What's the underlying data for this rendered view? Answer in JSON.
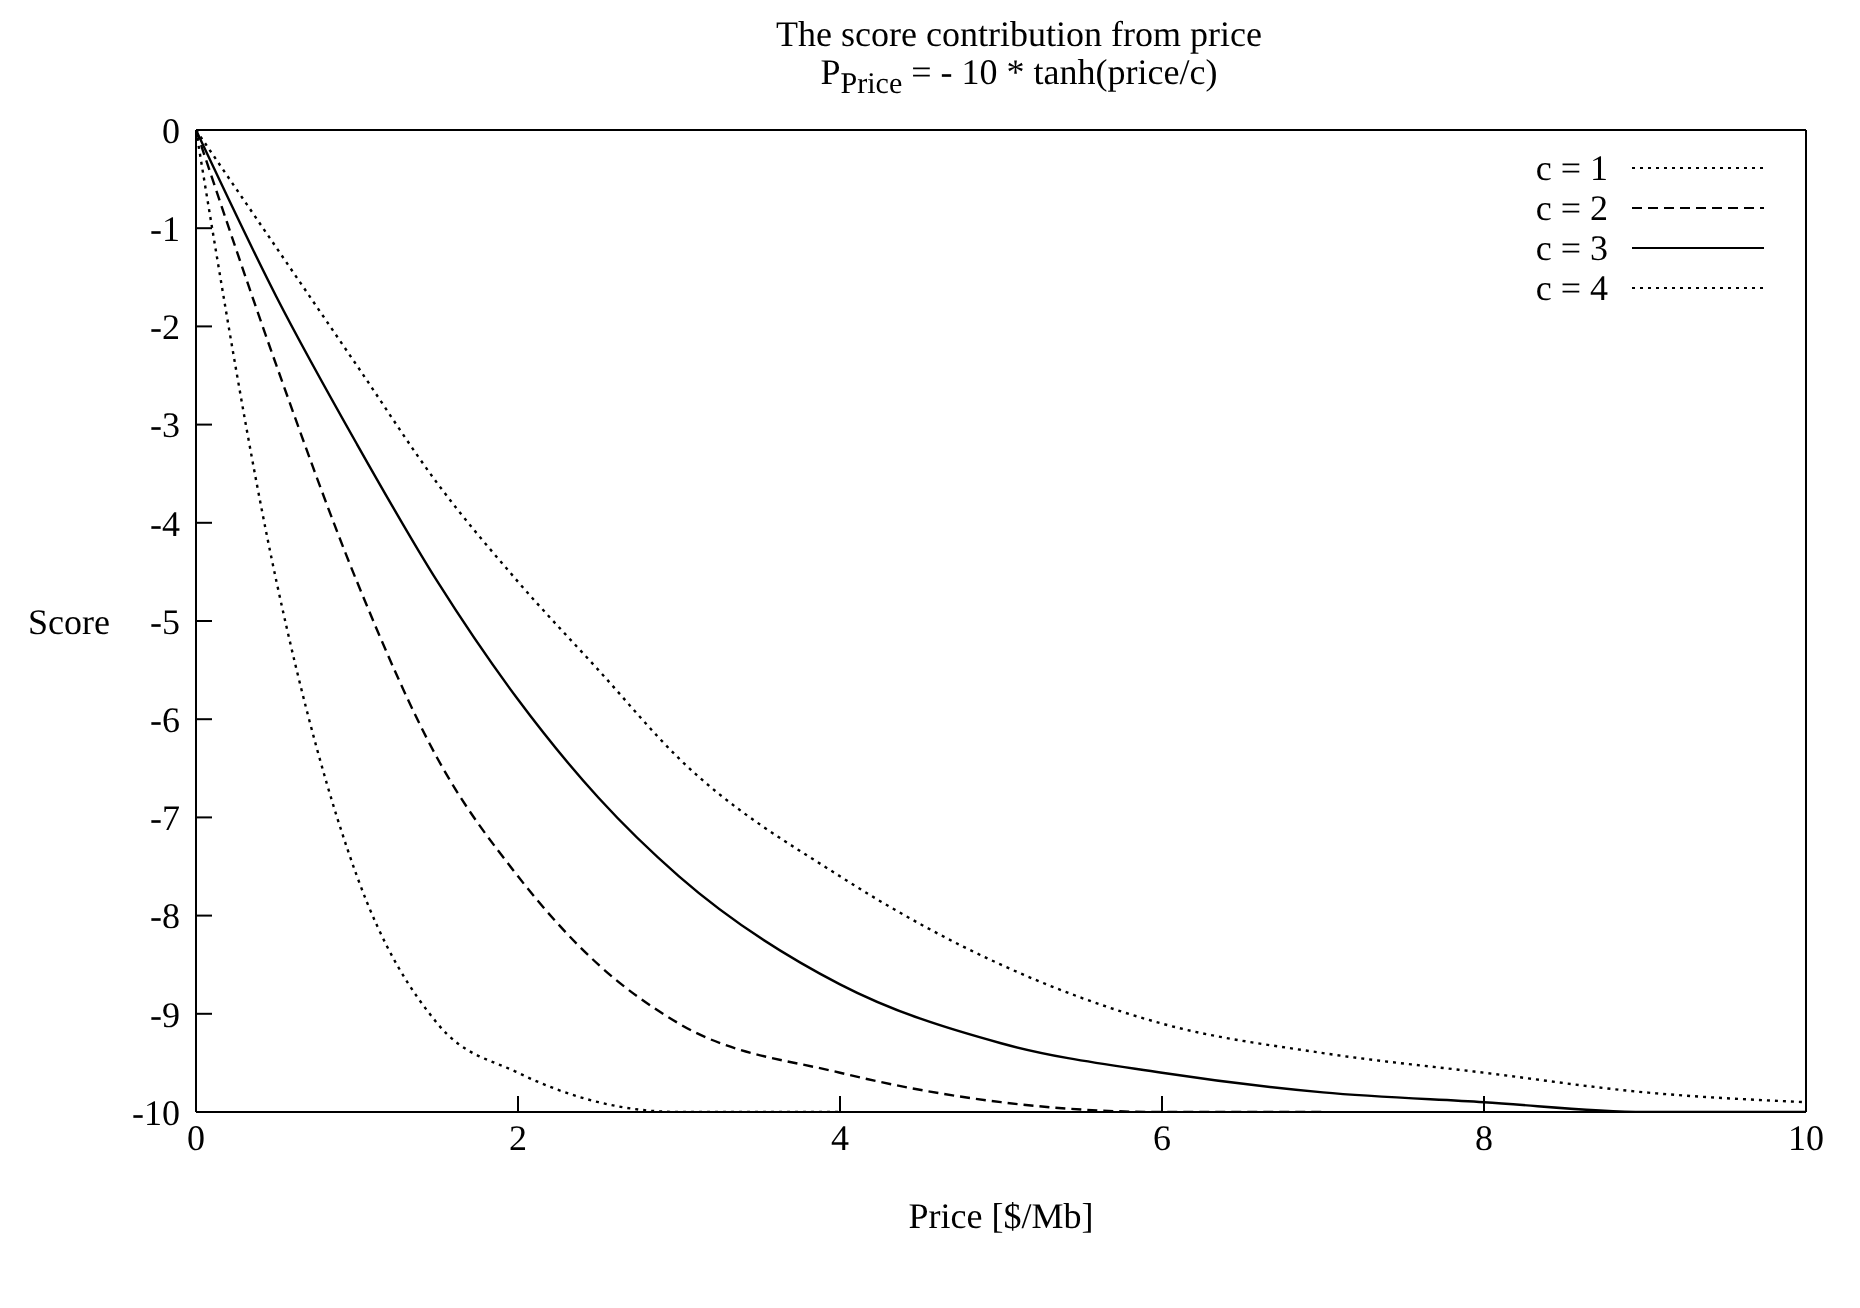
{
  "chart_data": {
    "type": "line",
    "title": "The score contribution from price",
    "subtitle": "P$_{Price}$ = - 10 * tanh(price/c)",
    "xlabel": "Price [$/Mb]",
    "ylabel": "Score",
    "x": [
      0,
      0.5,
      1,
      1.5,
      2,
      2.5,
      3,
      4,
      5,
      6,
      7,
      8,
      9,
      10
    ],
    "series": [
      {
        "name": "c = 1",
        "color": "#000000",
        "line_style": "dotted",
        "x": [
          0,
          0.5,
          1,
          1.5,
          2,
          2.5,
          3,
          4
        ],
        "values": [
          0,
          -4.6,
          -7.6,
          -9.1,
          -9.6,
          -9.9,
          -10,
          -10
        ]
      },
      {
        "name": "c = 2",
        "color": "#000000",
        "line_style": "dashed",
        "x": [
          0,
          0.5,
          1,
          1.5,
          2,
          2.5,
          3,
          4,
          5,
          6,
          7
        ],
        "values": [
          0,
          -2.4,
          -4.6,
          -6.4,
          -7.6,
          -8.5,
          -9.1,
          -9.6,
          -9.9,
          -10,
          -10
        ]
      },
      {
        "name": "c = 3",
        "color": "#000000",
        "line_style": "solid",
        "values": [
          0,
          -1.7,
          -3.2,
          -4.6,
          -5.8,
          -6.8,
          -7.6,
          -8.7,
          -9.3,
          -9.6,
          -9.8,
          -9.9,
          -10,
          -10
        ]
      },
      {
        "name": "c = 4",
        "color": "#000000",
        "line_style": "dotted",
        "values": [
          0,
          -1.2,
          -2.4,
          -3.6,
          -4.6,
          -5.5,
          -6.4,
          -7.6,
          -8.5,
          -9.1,
          -9.4,
          -9.6,
          -9.8,
          -9.9
        ]
      }
    ],
    "xlim": [
      0,
      10
    ],
    "xticks": [
      0,
      2,
      4,
      6,
      8,
      10
    ],
    "ylim": [
      -10,
      0
    ],
    "yticks": [
      -10,
      -9,
      -8,
      -7,
      -6,
      -5,
      -4,
      -3,
      -2,
      -1,
      0
    ],
    "grid": false,
    "legend": "top right",
    "marker": "none"
  }
}
